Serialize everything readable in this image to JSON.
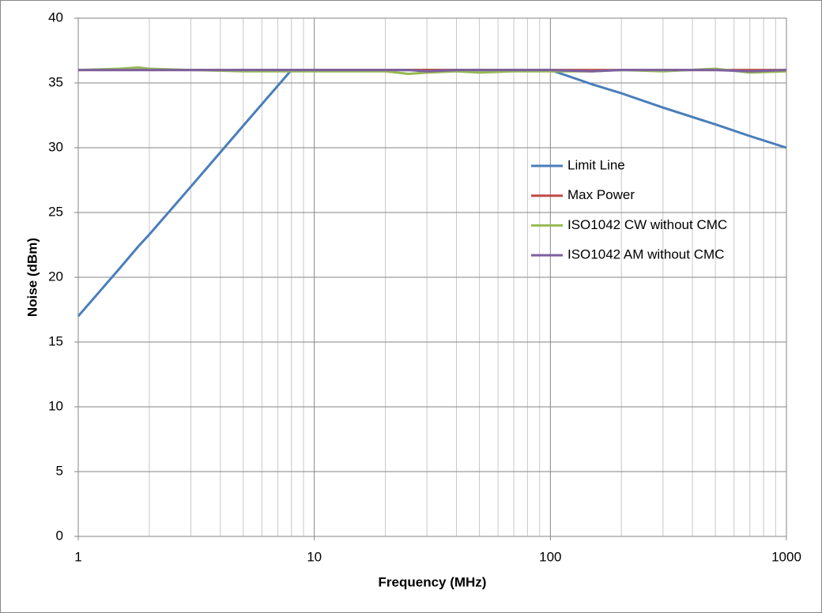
{
  "chart_data": {
    "type": "line",
    "x_label": "Frequency (MHz)",
    "y_label": "Noise (dBm)",
    "x": [
      1,
      1.5,
      1.8,
      2,
      3,
      5,
      8,
      10,
      15,
      20,
      25,
      30,
      40,
      50,
      70,
      100,
      150,
      200,
      300,
      500,
      700,
      1000
    ],
    "series": [
      {
        "name": "Limit Line",
        "color": "#4a7ebb",
        "values": [
          17,
          20.7,
          22.4,
          23.3,
          27.0,
          31.7,
          36,
          36,
          36,
          36,
          36,
          36,
          36,
          36,
          36,
          36,
          34.9,
          34.2,
          33.1,
          31.8,
          30.9,
          30
        ]
      },
      {
        "name": "Max Power",
        "color": "#be4b48",
        "values": [
          36,
          36,
          36,
          36,
          36,
          36,
          36,
          36,
          36,
          36,
          36,
          36,
          36,
          36,
          36,
          36,
          36,
          36,
          36,
          36,
          36,
          36
        ]
      },
      {
        "name": "ISO1042 CW without CMC",
        "color": "#98b954",
        "values": [
          36,
          36.1,
          36.2,
          36.1,
          36,
          35.9,
          35.9,
          35.9,
          35.9,
          35.9,
          35.7,
          35.8,
          35.9,
          35.8,
          35.9,
          35.9,
          35.9,
          36,
          35.9,
          36.1,
          35.8,
          35.9
        ]
      },
      {
        "name": "ISO1042 AM without CMC",
        "color": "#7d60a0",
        "values": [
          36,
          36,
          36,
          36,
          36,
          36,
          36,
          36,
          36,
          36,
          36,
          35.9,
          36,
          36,
          36,
          36,
          35.9,
          36,
          36,
          36,
          35.9,
          36
        ]
      }
    ],
    "xlim": [
      1,
      1000
    ],
    "xlog": true,
    "xticks": [
      1,
      10,
      100,
      1000
    ],
    "xminorticks": [
      2,
      3,
      4,
      5,
      6,
      7,
      8,
      9,
      20,
      30,
      40,
      50,
      60,
      70,
      80,
      90,
      200,
      300,
      400,
      500,
      600,
      700,
      800,
      900
    ],
    "ylim": [
      0,
      40
    ],
    "yticks": [
      0,
      5,
      10,
      15,
      20,
      25,
      30,
      35,
      40
    ],
    "grid": true,
    "legend": "right"
  }
}
